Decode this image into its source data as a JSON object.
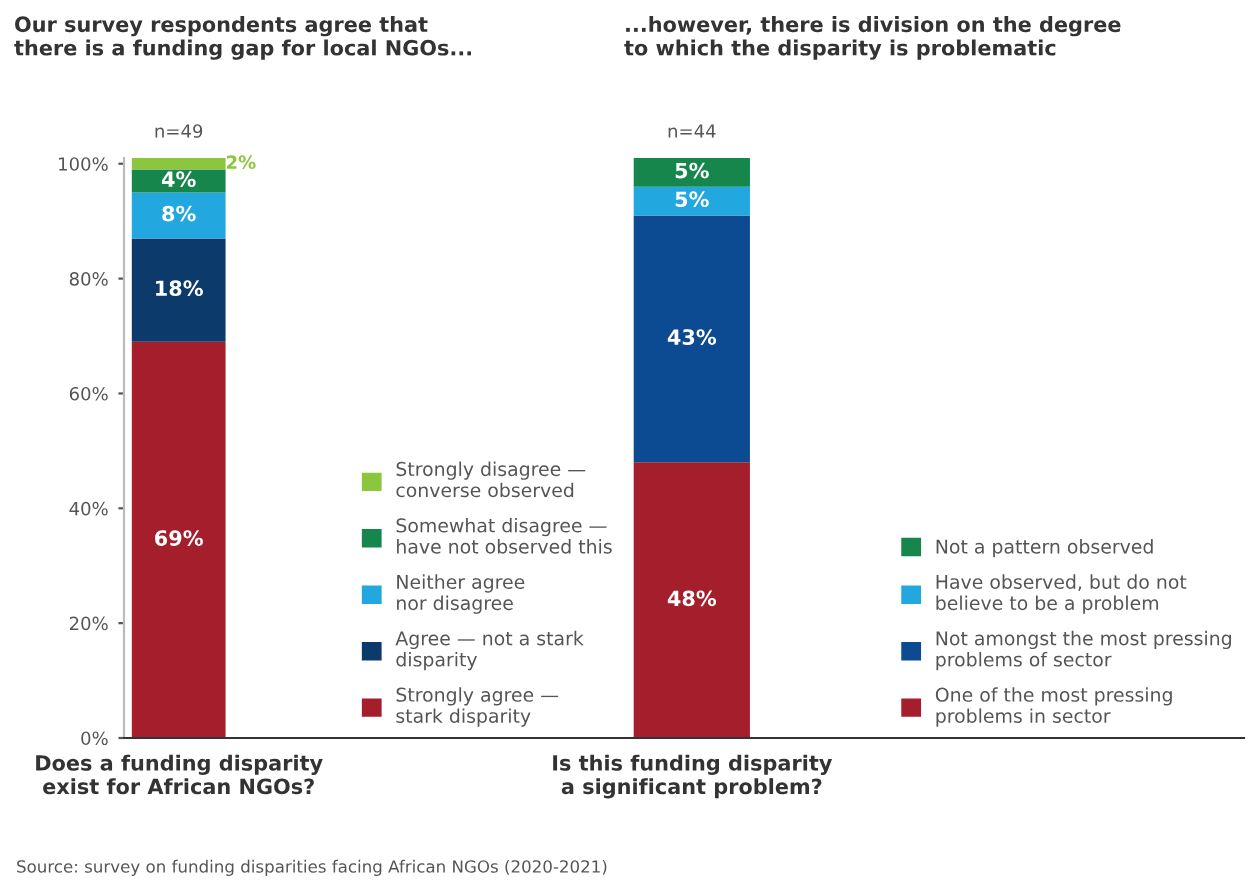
{
  "chart_data": [
    {
      "type": "bar",
      "stacked": true,
      "title": "Our survey respondents agree that\nthere is a funding gap for local NGOs...",
      "categories": [
        "Does a funding disparity\nexist for African NGOs?"
      ],
      "ylim": [
        0,
        101
      ],
      "yticks": [
        {
          "value": 0,
          "label": "0%"
        },
        {
          "value": 20,
          "label": "20%"
        },
        {
          "value": 40,
          "label": "40%"
        },
        {
          "value": 60,
          "label": "60%"
        },
        {
          "value": 80,
          "label": "80%"
        },
        {
          "value": 100,
          "label": "100%"
        }
      ],
      "legend": "bottom right",
      "grid": false,
      "annotations": [
        "n=49",
        "Source: survey on funding disparities facing African NGOs (2020-2021)"
      ],
      "series": [
        {
          "name": "Strongly agree —\nstark disparity",
          "color": "#a51e2c",
          "values": [
            69
          ],
          "value_labels": [
            "69%"
          ]
        },
        {
          "name": "Agree — not a stark\ndisparity",
          "color": "#0b3a6b",
          "values": [
            18
          ],
          "value_labels": [
            "18%"
          ]
        },
        {
          "name": "Neither agree\nnor disagree",
          "color": "#23a7df",
          "values": [
            8
          ],
          "value_labels": [
            "8%"
          ]
        },
        {
          "name": "Somewhat disagree —\nhave not observed this",
          "color": "#16864c",
          "values": [
            4
          ],
          "value_labels": [
            "4%"
          ]
        },
        {
          "name": "Strongly disagree —\nconverse observed",
          "color": "#8cc63f",
          "values": [
            2
          ],
          "value_labels": [
            "2%"
          ]
        }
      ]
    },
    {
      "type": "bar",
      "stacked": true,
      "title": "...however, there is division on the degree\nto which the disparity is problematic",
      "categories": [
        "Is this funding disparity\na significant problem?"
      ],
      "ylim": [
        0,
        101
      ],
      "tick_labels": "x",
      "legend": "bottom right",
      "grid": false,
      "annotations": [
        "n=44"
      ],
      "series": [
        {
          "name": "One of the most pressing\nproblems in sector",
          "color": "#a51e2c",
          "values": [
            48
          ],
          "value_labels": [
            "48%"
          ]
        },
        {
          "name": "Not amongst the most pressing\nproblems of sector",
          "color": "#0c4a91",
          "values": [
            43
          ],
          "value_labels": [
            "43%"
          ]
        },
        {
          "name": "Have observed, but do not\nbelieve to be a problem",
          "color": "#23a7df",
          "values": [
            5
          ],
          "value_labels": [
            "5%"
          ]
        },
        {
          "name": "Not a pattern observed",
          "color": "#16864c",
          "values": [
            5
          ],
          "value_labels": [
            "5%"
          ]
        }
      ]
    }
  ]
}
